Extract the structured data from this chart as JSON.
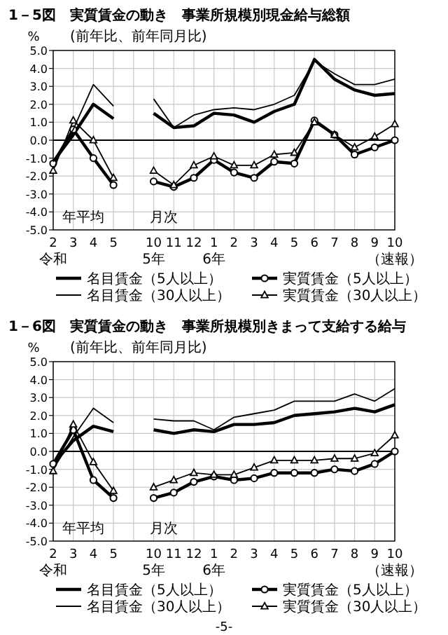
{
  "chart_data": [
    {
      "type": "line",
      "title": "1－5図　実質賃金の動き　事業所規模別現金給与総額",
      "subtitle": "(前年比、前年同月比)",
      "ylabel": "%",
      "categories": [
        "2\n令和",
        "3",
        "4",
        "5",
        null,
        "10\n5年",
        "11",
        "12",
        "1\n6年",
        "2",
        "3",
        "4",
        "5",
        "6",
        "7",
        "8",
        "9",
        "10（速報）"
      ],
      "series": [
        {
          "name": "名目賃金（5人以上）",
          "color": "#000000",
          "marker": "none",
          "values": [
            -1.2,
            0.3,
            2.0,
            1.2,
            null,
            1.5,
            0.7,
            0.8,
            1.5,
            1.4,
            1.0,
            1.6,
            2.0,
            4.5,
            3.4,
            2.8,
            2.5,
            2.6
          ]
        },
        {
          "name": "実質賃金（5人以上）",
          "color": "#000000",
          "marker": "circle",
          "values": [
            -1.3,
            0.6,
            -1.0,
            -2.5,
            null,
            -2.3,
            -2.6,
            -2.1,
            -1.1,
            -1.8,
            -2.1,
            -1.2,
            -1.3,
            1.1,
            0.3,
            -0.8,
            -0.4,
            0.0
          ]
        },
        {
          "name": "名目賃金（30人以上）",
          "color": "#000000",
          "marker": "none",
          "values": [
            -1.2,
            0.6,
            3.1,
            1.9,
            null,
            2.3,
            0.7,
            1.4,
            1.7,
            1.8,
            1.7,
            2.0,
            2.5,
            4.4,
            3.7,
            3.1,
            3.1,
            3.4
          ]
        },
        {
          "name": "実質賃金（30人以上）",
          "color": "#000000",
          "marker": "triangle",
          "values": [
            -1.7,
            1.1,
            0.0,
            -2.1,
            null,
            -1.7,
            -2.5,
            -1.4,
            -0.9,
            -1.4,
            -1.4,
            -0.8,
            -0.7,
            1.0,
            0.3,
            -0.4,
            0.2,
            0.9
          ]
        }
      ],
      "ylim": [
        -5,
        5
      ],
      "yticks": [
        {
          "value": 5,
          "label": "5.0"
        },
        {
          "value": 4,
          "label": "4.0"
        },
        {
          "value": 3,
          "label": "3.0"
        },
        {
          "value": 2,
          "label": "2.0"
        },
        {
          "value": 1,
          "label": "1.0"
        },
        {
          "value": 0,
          "label": "0.0"
        },
        {
          "value": -1,
          "label": "-1.0"
        },
        {
          "value": -2,
          "label": "-2.0"
        },
        {
          "value": -3,
          "label": "-3.0"
        },
        {
          "value": -4,
          "label": "-4.0"
        },
        {
          "value": -5,
          "label": "-5.0"
        }
      ],
      "grid": true,
      "legend": "bottom",
      "line_style": "solid",
      "annotations": [
        "年平均",
        "月次"
      ]
    },
    {
      "type": "line",
      "title": "1－6図　実質賃金の動き　事業所規模別きまって支給する給与",
      "subtitle": "(前年比、前年同月比)",
      "ylabel": "%",
      "categories": [
        "2\n令和",
        "3",
        "4",
        "5",
        null,
        "10\n5年",
        "11",
        "12",
        "1\n6年",
        "2",
        "3",
        "4",
        "5",
        "6",
        "7",
        "8",
        "9",
        "10（速報）"
      ],
      "series": [
        {
          "name": "名目賃金（5人以上）",
          "color": "#000000",
          "marker": "none",
          "values": [
            -0.7,
            0.6,
            1.4,
            1.1,
            null,
            1.2,
            1.0,
            1.2,
            1.1,
            1.5,
            1.5,
            1.6,
            2.0,
            2.1,
            2.2,
            2.4,
            2.2,
            2.6
          ]
        },
        {
          "name": "実質賃金（5人以上）",
          "color": "#000000",
          "marker": "circle",
          "values": [
            -0.7,
            1.2,
            -1.6,
            -2.6,
            null,
            -2.6,
            -2.3,
            -1.7,
            -1.4,
            -1.6,
            -1.5,
            -1.2,
            -1.2,
            -1.2,
            -1.0,
            -1.1,
            -0.7,
            0.0
          ]
        },
        {
          "name": "名目賃金（30人以上）",
          "color": "#000000",
          "marker": "none",
          "values": [
            -1.0,
            0.8,
            2.4,
            1.6,
            null,
            1.8,
            1.7,
            1.7,
            1.2,
            1.9,
            2.1,
            2.3,
            2.8,
            2.8,
            2.8,
            3.2,
            2.8,
            3.5
          ]
        },
        {
          "name": "実質賃金（30人以上）",
          "color": "#000000",
          "marker": "triangle",
          "values": [
            -1.1,
            1.5,
            -0.6,
            -2.2,
            null,
            -2.0,
            -1.6,
            -1.2,
            -1.3,
            -1.3,
            -0.9,
            -0.5,
            -0.5,
            -0.5,
            -0.4,
            -0.4,
            -0.1,
            0.9
          ]
        }
      ],
      "ylim": [
        -5,
        5
      ],
      "yticks": [
        {
          "value": 5,
          "label": "5.0"
        },
        {
          "value": 4,
          "label": "4.0"
        },
        {
          "value": 3,
          "label": "3.0"
        },
        {
          "value": 2,
          "label": "2.0"
        },
        {
          "value": 1,
          "label": "1.0"
        },
        {
          "value": 0,
          "label": "0.0"
        },
        {
          "value": -1,
          "label": "-1.0"
        },
        {
          "value": -2,
          "label": "-2.0"
        },
        {
          "value": -3,
          "label": "-3.0"
        },
        {
          "value": -4,
          "label": "-4.0"
        },
        {
          "value": -5,
          "label": "-5.0"
        }
      ],
      "grid": true,
      "legend": "bottom",
      "line_style": "solid",
      "annotations": [
        "年平均",
        "月次",
        "-5-"
      ]
    }
  ]
}
